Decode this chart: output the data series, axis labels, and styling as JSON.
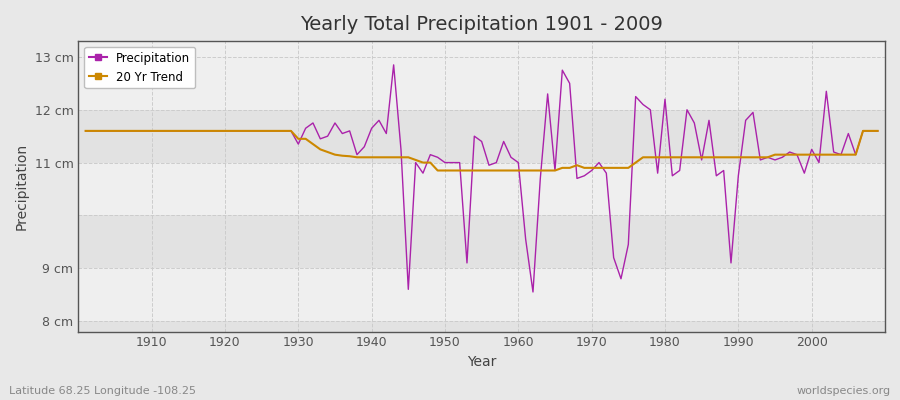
{
  "title": "Yearly Total Precipitation 1901 - 2009",
  "xlabel": "Year",
  "ylabel": "Precipitation",
  "footnote_left": "Latitude 68.25 Longitude -108.25",
  "footnote_right": "worldspecies.org",
  "ylim": [
    7.8,
    13.3
  ],
  "yticks": [
    8,
    9,
    11,
    12,
    13
  ],
  "ytick_labels": [
    "8 cm",
    "9 cm",
    "11 cm",
    "12 cm",
    "13 cm"
  ],
  "yticks_all": [
    8,
    9,
    10,
    11,
    12,
    13
  ],
  "xlim": [
    1900,
    2010
  ],
  "xticks": [
    1910,
    1920,
    1930,
    1940,
    1950,
    1960,
    1970,
    1980,
    1990,
    2000
  ],
  "bg_outer": "#e8e8e8",
  "bg_band_light": "#efefef",
  "bg_band_dark": "#e2e2e2",
  "grid_color": "#ffffff",
  "precip_color": "#aa22aa",
  "trend_color": "#cc8800",
  "years": [
    1901,
    1902,
    1903,
    1904,
    1905,
    1906,
    1907,
    1908,
    1909,
    1910,
    1911,
    1912,
    1913,
    1914,
    1915,
    1916,
    1917,
    1918,
    1919,
    1920,
    1921,
    1922,
    1923,
    1924,
    1925,
    1926,
    1927,
    1928,
    1929,
    1930,
    1931,
    1932,
    1933,
    1934,
    1935,
    1936,
    1937,
    1938,
    1939,
    1940,
    1941,
    1942,
    1943,
    1944,
    1945,
    1946,
    1947,
    1948,
    1949,
    1950,
    1951,
    1952,
    1953,
    1954,
    1955,
    1956,
    1957,
    1958,
    1959,
    1960,
    1961,
    1962,
    1963,
    1964,
    1965,
    1966,
    1967,
    1968,
    1969,
    1970,
    1971,
    1972,
    1973,
    1974,
    1975,
    1976,
    1977,
    1978,
    1979,
    1980,
    1981,
    1982,
    1983,
    1984,
    1985,
    1986,
    1987,
    1988,
    1989,
    1990,
    1991,
    1992,
    1993,
    1994,
    1995,
    1996,
    1997,
    1998,
    1999,
    2000,
    2001,
    2002,
    2003,
    2004,
    2005,
    2006,
    2007,
    2008,
    2009
  ],
  "precip": [
    11.6,
    11.6,
    11.6,
    11.6,
    11.6,
    11.6,
    11.6,
    11.6,
    11.6,
    11.6,
    11.6,
    11.6,
    11.6,
    11.6,
    11.6,
    11.6,
    11.6,
    11.6,
    11.6,
    11.6,
    11.6,
    11.6,
    11.6,
    11.6,
    11.6,
    11.6,
    11.6,
    11.6,
    11.6,
    11.35,
    11.65,
    11.75,
    11.45,
    11.5,
    11.75,
    11.55,
    11.6,
    11.15,
    11.3,
    11.65,
    11.8,
    11.55,
    12.85,
    11.25,
    8.6,
    11.0,
    10.8,
    11.15,
    11.1,
    11.0,
    11.0,
    11.0,
    9.1,
    11.5,
    11.4,
    10.95,
    11.0,
    11.4,
    11.1,
    11.0,
    9.55,
    8.55,
    10.7,
    12.3,
    10.85,
    12.75,
    12.5,
    10.7,
    10.75,
    10.85,
    11.0,
    10.8,
    9.2,
    8.8,
    9.45,
    12.25,
    12.1,
    12.0,
    10.8,
    12.2,
    10.75,
    10.85,
    12.0,
    11.75,
    11.05,
    11.8,
    10.75,
    10.85,
    9.1,
    10.75,
    11.8,
    11.95,
    11.05,
    11.1,
    11.05,
    11.1,
    11.2,
    11.15,
    10.8,
    11.25,
    11.0,
    12.35,
    11.2,
    11.15,
    11.55,
    11.15,
    11.6,
    11.6,
    11.6
  ],
  "trend": [
    11.6,
    11.6,
    11.6,
    11.6,
    11.6,
    11.6,
    11.6,
    11.6,
    11.6,
    11.6,
    11.6,
    11.6,
    11.6,
    11.6,
    11.6,
    11.6,
    11.6,
    11.6,
    11.6,
    11.6,
    11.6,
    11.6,
    11.6,
    11.6,
    11.6,
    11.6,
    11.6,
    11.6,
    11.6,
    11.45,
    11.45,
    11.35,
    11.25,
    11.2,
    11.15,
    11.13,
    11.12,
    11.1,
    11.1,
    11.1,
    11.1,
    11.1,
    11.1,
    11.1,
    11.1,
    11.05,
    11.0,
    11.0,
    10.85,
    10.85,
    10.85,
    10.85,
    10.85,
    10.85,
    10.85,
    10.85,
    10.85,
    10.85,
    10.85,
    10.85,
    10.85,
    10.85,
    10.85,
    10.85,
    10.85,
    10.9,
    10.9,
    10.95,
    10.9,
    10.9,
    10.9,
    10.9,
    10.9,
    10.9,
    10.9,
    11.0,
    11.1,
    11.1,
    11.1,
    11.1,
    11.1,
    11.1,
    11.1,
    11.1,
    11.1,
    11.1,
    11.1,
    11.1,
    11.1,
    11.1,
    11.1,
    11.1,
    11.1,
    11.1,
    11.15,
    11.15,
    11.15,
    11.15,
    11.15,
    11.15,
    11.15,
    11.15,
    11.15,
    11.15,
    11.15,
    11.15,
    11.6,
    11.6,
    11.6
  ]
}
